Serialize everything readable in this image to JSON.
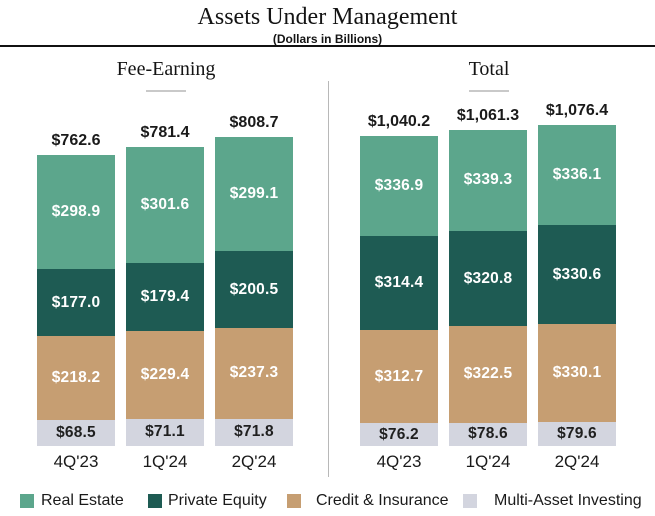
{
  "chart_data": {
    "type": "bar",
    "stacked": true,
    "title": "Assets Under Management",
    "subtitle": "(Dollars in Billions)",
    "value_prefix": "$",
    "categories": [
      "4Q'23",
      "1Q'24",
      "2Q'24"
    ],
    "legend_position": "bottom",
    "grid": false,
    "groups": [
      {
        "label": "Fee-Earning",
        "totals_display": [
          "$762.6",
          "$781.4",
          "$808.7"
        ],
        "series": [
          {
            "name": "Real Estate",
            "color": "#5CA68C",
            "label_color": "#ffffff",
            "values": [
              298.9,
              301.6,
              299.1
            ]
          },
          {
            "name": "Private Equity",
            "color": "#1E5B53",
            "label_color": "#ffffff",
            "values": [
              177.0,
              179.4,
              200.5
            ]
          },
          {
            "name": "Credit & Insurance",
            "color": "#C69E72",
            "label_color": "#ffffff",
            "values": [
              218.2,
              229.4,
              237.3
            ]
          },
          {
            "name": "Multi-Asset Investing",
            "color": "#D3D5DF",
            "label_color": "#1f1f1f",
            "values": [
              68.5,
              71.1,
              71.8
            ]
          }
        ]
      },
      {
        "label": "Total",
        "totals_display": [
          "$1,040.2",
          "$1,061.3",
          "$1,076.4"
        ],
        "series": [
          {
            "name": "Real Estate",
            "color": "#5CA68C",
            "label_color": "#ffffff",
            "values": [
              336.9,
              339.3,
              336.1
            ]
          },
          {
            "name": "Private Equity",
            "color": "#1E5B53",
            "label_color": "#ffffff",
            "values": [
              314.4,
              320.8,
              330.6
            ]
          },
          {
            "name": "Credit & Insurance",
            "color": "#C69E72",
            "label_color": "#ffffff",
            "values": [
              312.7,
              322.5,
              330.1
            ]
          },
          {
            "name": "Multi-Asset Investing",
            "color": "#D3D5DF",
            "label_color": "#1f1f1f",
            "values": [
              76.2,
              78.6,
              79.6
            ]
          }
        ]
      }
    ],
    "legend": [
      {
        "label": "Real Estate",
        "color": "#5CA68C"
      },
      {
        "label": "Private Equity",
        "color": "#1E5B53"
      },
      {
        "label": "Credit & Insurance",
        "color": "#C69E72"
      },
      {
        "label": "Multi-Asset Investing",
        "color": "#D3D5DF"
      }
    ]
  }
}
